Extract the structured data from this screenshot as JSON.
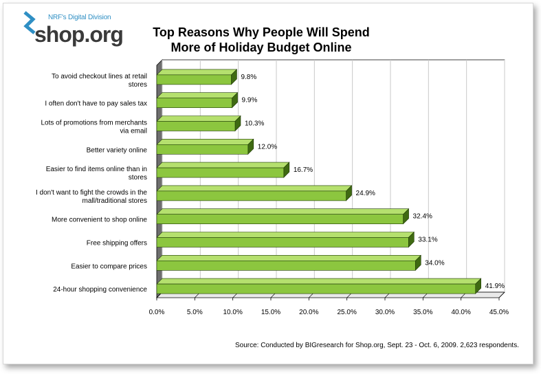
{
  "logo": {
    "tagline": "NRF's Digital Division",
    "name": "shop.org"
  },
  "title_line1": "Top Reasons Why People Will Spend",
  "title_line2": "More of Holiday Budget Online",
  "source": "Source: Conducted by BIGresearch for Shop.org, Sept. 23 - Oct. 6, 2009. 2,623 respondents.",
  "colors": {
    "bar_front": "#8cc63f",
    "bar_top": "#b5e06e",
    "bar_side": "#3f6a12",
    "grid": "#c8c8c8",
    "wall": "#e9e9e9"
  },
  "chart_data": {
    "type": "bar",
    "orientation": "horizontal",
    "categories": [
      [
        "To avoid checkout lines at retail",
        "stores"
      ],
      [
        "I often don't have to pay sales tax"
      ],
      [
        "Lots of promotions from merchants",
        "via email"
      ],
      [
        "Better variety online"
      ],
      [
        "Easier to find items online than in",
        "stores"
      ],
      [
        "I don't want to fight the crowds in the",
        "mall/traditional stores"
      ],
      [
        "More convenient to shop online"
      ],
      [
        "Free shipping offers"
      ],
      [
        "Easier to compare prices"
      ],
      [
        "24-hour shopping convenience"
      ]
    ],
    "values": [
      9.8,
      9.9,
      10.3,
      12.0,
      16.7,
      24.9,
      32.4,
      33.1,
      34.0,
      41.9
    ],
    "value_labels": [
      "9.8%",
      "9.9%",
      "10.3%",
      "12.0%",
      "16.7%",
      "24.9%",
      "32.4%",
      "33.1%",
      "34.0%",
      "41.9%"
    ],
    "xlim": [
      0,
      45
    ],
    "x_ticks": [
      "0.0%",
      "5.0%",
      "10.0%",
      "15.0%",
      "20.0%",
      "25.0%",
      "30.0%",
      "35.0%",
      "40.0%",
      "45.0%"
    ],
    "grid": true,
    "style": "3d"
  }
}
